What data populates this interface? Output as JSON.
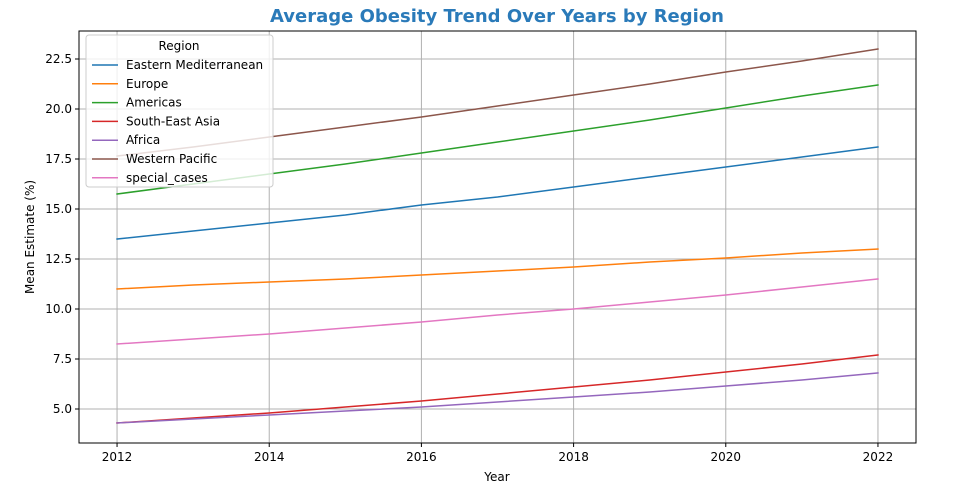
{
  "chart_data": {
    "type": "line",
    "title": "Average Obesity Trend Over Years by Region",
    "xlabel": "Year",
    "ylabel": "Mean Estimate (%)",
    "xlim": [
      2011.5,
      2022.5
    ],
    "ylim": [
      3.3,
      23.9
    ],
    "x_ticks": [
      2012,
      2014,
      2016,
      2018,
      2020,
      2022
    ],
    "x_tick_labels": [
      "2012",
      "2014",
      "2016",
      "2018",
      "2020",
      "2022"
    ],
    "y_ticks": [
      5.0,
      7.5,
      10.0,
      12.5,
      15.0,
      17.5,
      20.0,
      22.5
    ],
    "y_tick_labels": [
      "5.0",
      "7.5",
      "10.0",
      "12.5",
      "15.0",
      "17.5",
      "20.0",
      "22.5"
    ],
    "grid": true,
    "legend": {
      "title": "Region",
      "placement": "top-left"
    },
    "x": [
      2012,
      2013,
      2014,
      2015,
      2016,
      2017,
      2018,
      2019,
      2020,
      2021,
      2022
    ],
    "series": [
      {
        "name": "Eastern Mediterranean",
        "color": "#1f77b4",
        "values": [
          13.5,
          13.9,
          14.3,
          14.7,
          15.2,
          15.6,
          16.1,
          16.6,
          17.1,
          17.6,
          18.1
        ]
      },
      {
        "name": "Europe",
        "color": "#ff7f0e",
        "values": [
          11.0,
          11.2,
          11.35,
          11.5,
          11.7,
          11.9,
          12.1,
          12.35,
          12.55,
          12.8,
          13.0
        ]
      },
      {
        "name": "Americas",
        "color": "#2ca02c",
        "values": [
          15.75,
          16.25,
          16.75,
          17.25,
          17.8,
          18.35,
          18.9,
          19.45,
          20.05,
          20.65,
          21.2
        ]
      },
      {
        "name": "South-East Asia",
        "color": "#d62728",
        "values": [
          4.3,
          4.55,
          4.8,
          5.1,
          5.4,
          5.75,
          6.1,
          6.45,
          6.85,
          7.25,
          7.7
        ]
      },
      {
        "name": "Africa",
        "color": "#9467bd",
        "values": [
          4.3,
          4.5,
          4.7,
          4.9,
          5.1,
          5.35,
          5.6,
          5.85,
          6.15,
          6.45,
          6.8
        ]
      },
      {
        "name": "Western Pacific",
        "color": "#8c564b",
        "values": [
          17.65,
          18.1,
          18.6,
          19.1,
          19.6,
          20.15,
          20.7,
          21.25,
          21.85,
          22.4,
          23.0
        ]
      },
      {
        "name": "special_cases",
        "color": "#e377c2",
        "values": [
          8.25,
          8.5,
          8.75,
          9.05,
          9.35,
          9.7,
          10.0,
          10.35,
          10.7,
          11.1,
          11.5
        ]
      }
    ]
  }
}
